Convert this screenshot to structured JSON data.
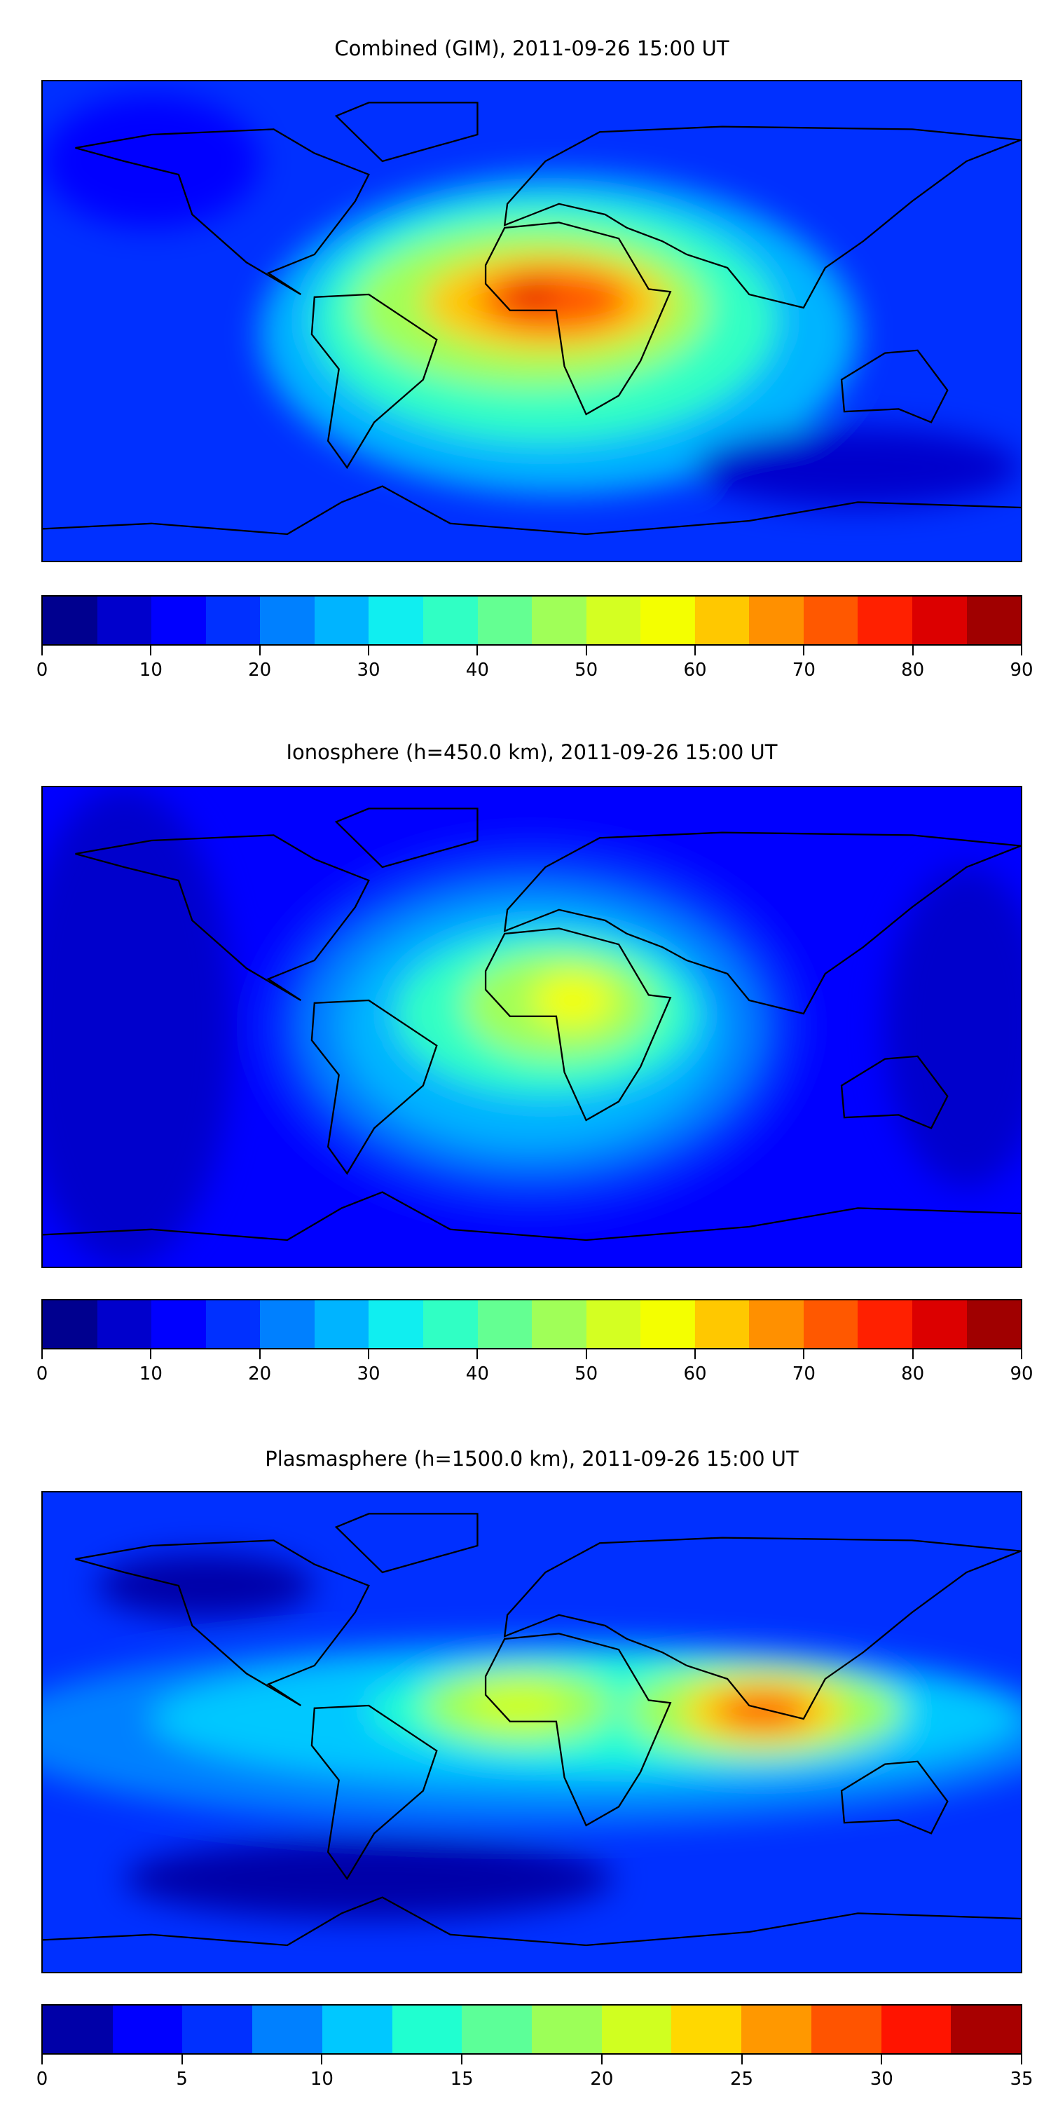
{
  "chart_data": [
    {
      "type": "heatmap",
      "title": "Combined (GIM), 2011-09-26 15:00 UT",
      "colorbar": {
        "ticks": [
          "0",
          "10",
          "20",
          "30",
          "40",
          "50",
          "60",
          "70",
          "80",
          "90"
        ],
        "range": [
          0,
          90
        ],
        "step": 5,
        "colors": [
          "#00008f",
          "#0000cc",
          "#0000ff",
          "#0030ff",
          "#0080ff",
          "#00b4ff",
          "#10eef0",
          "#30ffc4",
          "#64ff92",
          "#a0ff58",
          "#d4ff22",
          "#f4ff00",
          "#ffc800",
          "#ff9000",
          "#ff5800",
          "#ff2000",
          "#dc0000",
          "#a00000"
        ]
      },
      "field": {
        "background": "#0030ff",
        "blobs": [
          {
            "lon": 10,
            "lat": -5,
            "rx": 110,
            "ry": 60,
            "color": "#00b4ff"
          },
          {
            "lon": 5,
            "lat": 0,
            "rx": 85,
            "ry": 45,
            "color": "#30ffc4"
          },
          {
            "lon": 0,
            "lat": 5,
            "rx": 65,
            "ry": 30,
            "color": "#a0ff58"
          },
          {
            "lon": 5,
            "lat": 7,
            "rx": 45,
            "ry": 18,
            "color": "#ffc800"
          },
          {
            "lon": 8,
            "lat": 8,
            "rx": 28,
            "ry": 12,
            "color": "#ff5800"
          },
          {
            "lon": 0,
            "lat": 10,
            "rx": 8,
            "ry": 5,
            "color": "#dc0000"
          },
          {
            "lon": -140,
            "lat": 60,
            "rx": 40,
            "ry": 25,
            "color": "#0000ff"
          },
          {
            "lon": 120,
            "lat": -55,
            "rx": 60,
            "ry": 15,
            "color": "#0000cc"
          }
        ]
      }
    },
    {
      "type": "heatmap",
      "title": "Ionosphere  (h=450.0 km), 2011-09-26 15:00 UT",
      "colorbar": {
        "ticks": [
          "0",
          "10",
          "20",
          "30",
          "40",
          "50",
          "60",
          "70",
          "80",
          "90"
        ],
        "range": [
          0,
          90
        ],
        "step": 5,
        "colors": [
          "#00008f",
          "#0000cc",
          "#0000ff",
          "#0030ff",
          "#0080ff",
          "#00b4ff",
          "#10eef0",
          "#30ffc4",
          "#64ff92",
          "#a0ff58",
          "#d4ff22",
          "#f4ff00",
          "#ffc800",
          "#ff9000",
          "#ff5800",
          "#ff2000",
          "#dc0000",
          "#a00000"
        ]
      },
      "field": {
        "background": "#0000ff",
        "blobs": [
          {
            "lon": -150,
            "lat": 0,
            "rx": 40,
            "ry": 90,
            "color": "#0000cc"
          },
          {
            "lon": 160,
            "lat": 0,
            "rx": 30,
            "ry": 60,
            "color": "#0000cc"
          },
          {
            "lon": 0,
            "lat": 0,
            "rx": 100,
            "ry": 70,
            "color": "#0030ff"
          },
          {
            "lon": 0,
            "lat": 0,
            "rx": 85,
            "ry": 55,
            "color": "#0080ff"
          },
          {
            "lon": 0,
            "lat": 0,
            "rx": 70,
            "ry": 45,
            "color": "#00b4ff"
          },
          {
            "lon": 5,
            "lat": 5,
            "rx": 55,
            "ry": 30,
            "color": "#30ffc4"
          },
          {
            "lon": 10,
            "lat": 8,
            "rx": 35,
            "ry": 20,
            "color": "#a0ff58"
          },
          {
            "lon": 15,
            "lat": 10,
            "rx": 15,
            "ry": 10,
            "color": "#f4ff00"
          }
        ]
      }
    },
    {
      "type": "heatmap",
      "title": "Plasmasphere (h=1500.0 km), 2011-09-26 15:00 UT",
      "colorbar": {
        "ticks": [
          "0",
          "5",
          "10",
          "15",
          "20",
          "25",
          "30",
          "35"
        ],
        "range": [
          0,
          35
        ],
        "step": 2.5,
        "colors": [
          "#0000a8",
          "#0000ff",
          "#0030ff",
          "#0080ff",
          "#00c8ff",
          "#20ffd0",
          "#5cff98",
          "#9cff58",
          "#d0ff20",
          "#ffd800",
          "#ff9800",
          "#ff5400",
          "#ff1400",
          "#a80000"
        ]
      },
      "field": {
        "background": "#0030ff",
        "blobs": [
          {
            "lon": 0,
            "lat": 0,
            "rx": 200,
            "ry": 35,
            "color": "#0080ff"
          },
          {
            "lon": 20,
            "lat": 5,
            "rx": 160,
            "ry": 25,
            "color": "#00c8ff"
          },
          {
            "lon": 40,
            "lat": 8,
            "rx": 100,
            "ry": 20,
            "color": "#20ffd0"
          },
          {
            "lon": -5,
            "lat": 10,
            "rx": 35,
            "ry": 14,
            "color": "#9cff58"
          },
          {
            "lon": -5,
            "lat": 10,
            "rx": 18,
            "ry": 8,
            "color": "#d0ff20"
          },
          {
            "lon": 85,
            "lat": 8,
            "rx": 50,
            "ry": 18,
            "color": "#9cff58"
          },
          {
            "lon": 85,
            "lat": 8,
            "rx": 30,
            "ry": 12,
            "color": "#ffd800"
          },
          {
            "lon": 85,
            "lat": 8,
            "rx": 18,
            "ry": 7,
            "color": "#ff5400"
          },
          {
            "lon": -120,
            "lat": 55,
            "rx": 40,
            "ry": 12,
            "color": "#0000a8"
          },
          {
            "lon": -60,
            "lat": -55,
            "rx": 90,
            "ry": 15,
            "color": "#0000a8"
          }
        ]
      }
    }
  ]
}
